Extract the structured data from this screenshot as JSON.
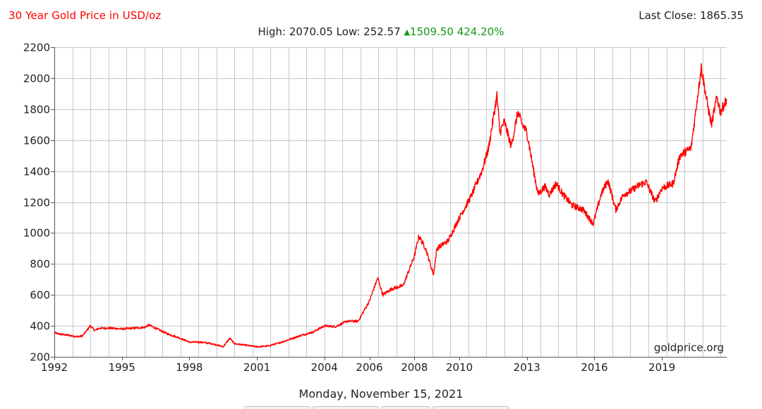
{
  "header": {
    "title": "30 Year Gold Price in USD/oz",
    "last_close": "Last Close: 1865.35",
    "high_low": "High: 2070.05 Low: 252.57",
    "change_icon": "up-triangle",
    "change": "1509.50 424.20%"
  },
  "footer": {
    "date": "Monday, November 15, 2021"
  },
  "colors": {
    "line": "#ff0000",
    "title": "#ff0000",
    "change": "#119911",
    "grid": "#c8c8c8"
  },
  "chart_data": {
    "type": "line",
    "title": "30 Year Gold Price in USD/oz",
    "xlabel": "",
    "ylabel": "",
    "xlim": [
      1992.0,
      2021.88
    ],
    "ylim": [
      200,
      2200
    ],
    "y_ticks": [
      200,
      400,
      600,
      800,
      1000,
      1200,
      1400,
      1600,
      1800,
      2000,
      2200
    ],
    "x_ticks": [
      1992,
      1995,
      1998,
      2001,
      2004,
      2006,
      2008,
      2010,
      2013,
      2016,
      2019
    ],
    "grid": true,
    "watermark": "goldprice.org",
    "series": [
      {
        "x": [
          1992.0,
          1992.3,
          1992.6,
          1993.0,
          1993.25,
          1993.6,
          1993.8,
          1994.0,
          1994.5,
          1995.0,
          1995.5,
          1996.0,
          1996.2,
          1996.5,
          1997.0,
          1997.5,
          1998.0,
          1998.5,
          1999.0,
          1999.5,
          1999.8,
          2000.0,
          2000.5,
          2001.0,
          2001.5,
          2002.0,
          2002.5,
          2003.0,
          2003.5,
          2004.0,
          2004.5,
          2005.0,
          2005.5,
          2006.0,
          2006.37,
          2006.6,
          2007.0,
          2007.5,
          2008.0,
          2008.2,
          2008.5,
          2008.85,
          2009.0,
          2009.5,
          2010.0,
          2010.5,
          2011.0,
          2011.3,
          2011.67,
          2011.8,
          2012.0,
          2012.3,
          2012.6,
          2012.8,
          2013.0,
          2013.3,
          2013.5,
          2013.8,
          2014.0,
          2014.3,
          2014.6,
          2015.0,
          2015.5,
          2015.95,
          2016.3,
          2016.6,
          2016.95,
          2017.3,
          2017.6,
          2018.0,
          2018.3,
          2018.7,
          2019.0,
          2019.5,
          2019.8,
          2020.0,
          2020.3,
          2020.6,
          2020.75,
          2021.0,
          2021.2,
          2021.45,
          2021.6,
          2021.88
        ],
        "y": [
          355,
          345,
          340,
          330,
          335,
          400,
          370,
          385,
          385,
          380,
          385,
          390,
          405,
          385,
          350,
          325,
          295,
          295,
          285,
          265,
          320,
          285,
          275,
          265,
          270,
          290,
          315,
          340,
          360,
          400,
          395,
          430,
          430,
          560,
          710,
          600,
          640,
          660,
          850,
          980,
          900,
          730,
          900,
          950,
          1100,
          1230,
          1400,
          1550,
          1890,
          1650,
          1720,
          1560,
          1780,
          1700,
          1650,
          1400,
          1250,
          1300,
          1250,
          1320,
          1250,
          1180,
          1150,
          1060,
          1250,
          1340,
          1150,
          1250,
          1270,
          1310,
          1330,
          1200,
          1290,
          1320,
          1500,
          1520,
          1550,
          1900,
          2070,
          1850,
          1700,
          1880,
          1780,
          1865
        ]
      }
    ]
  }
}
